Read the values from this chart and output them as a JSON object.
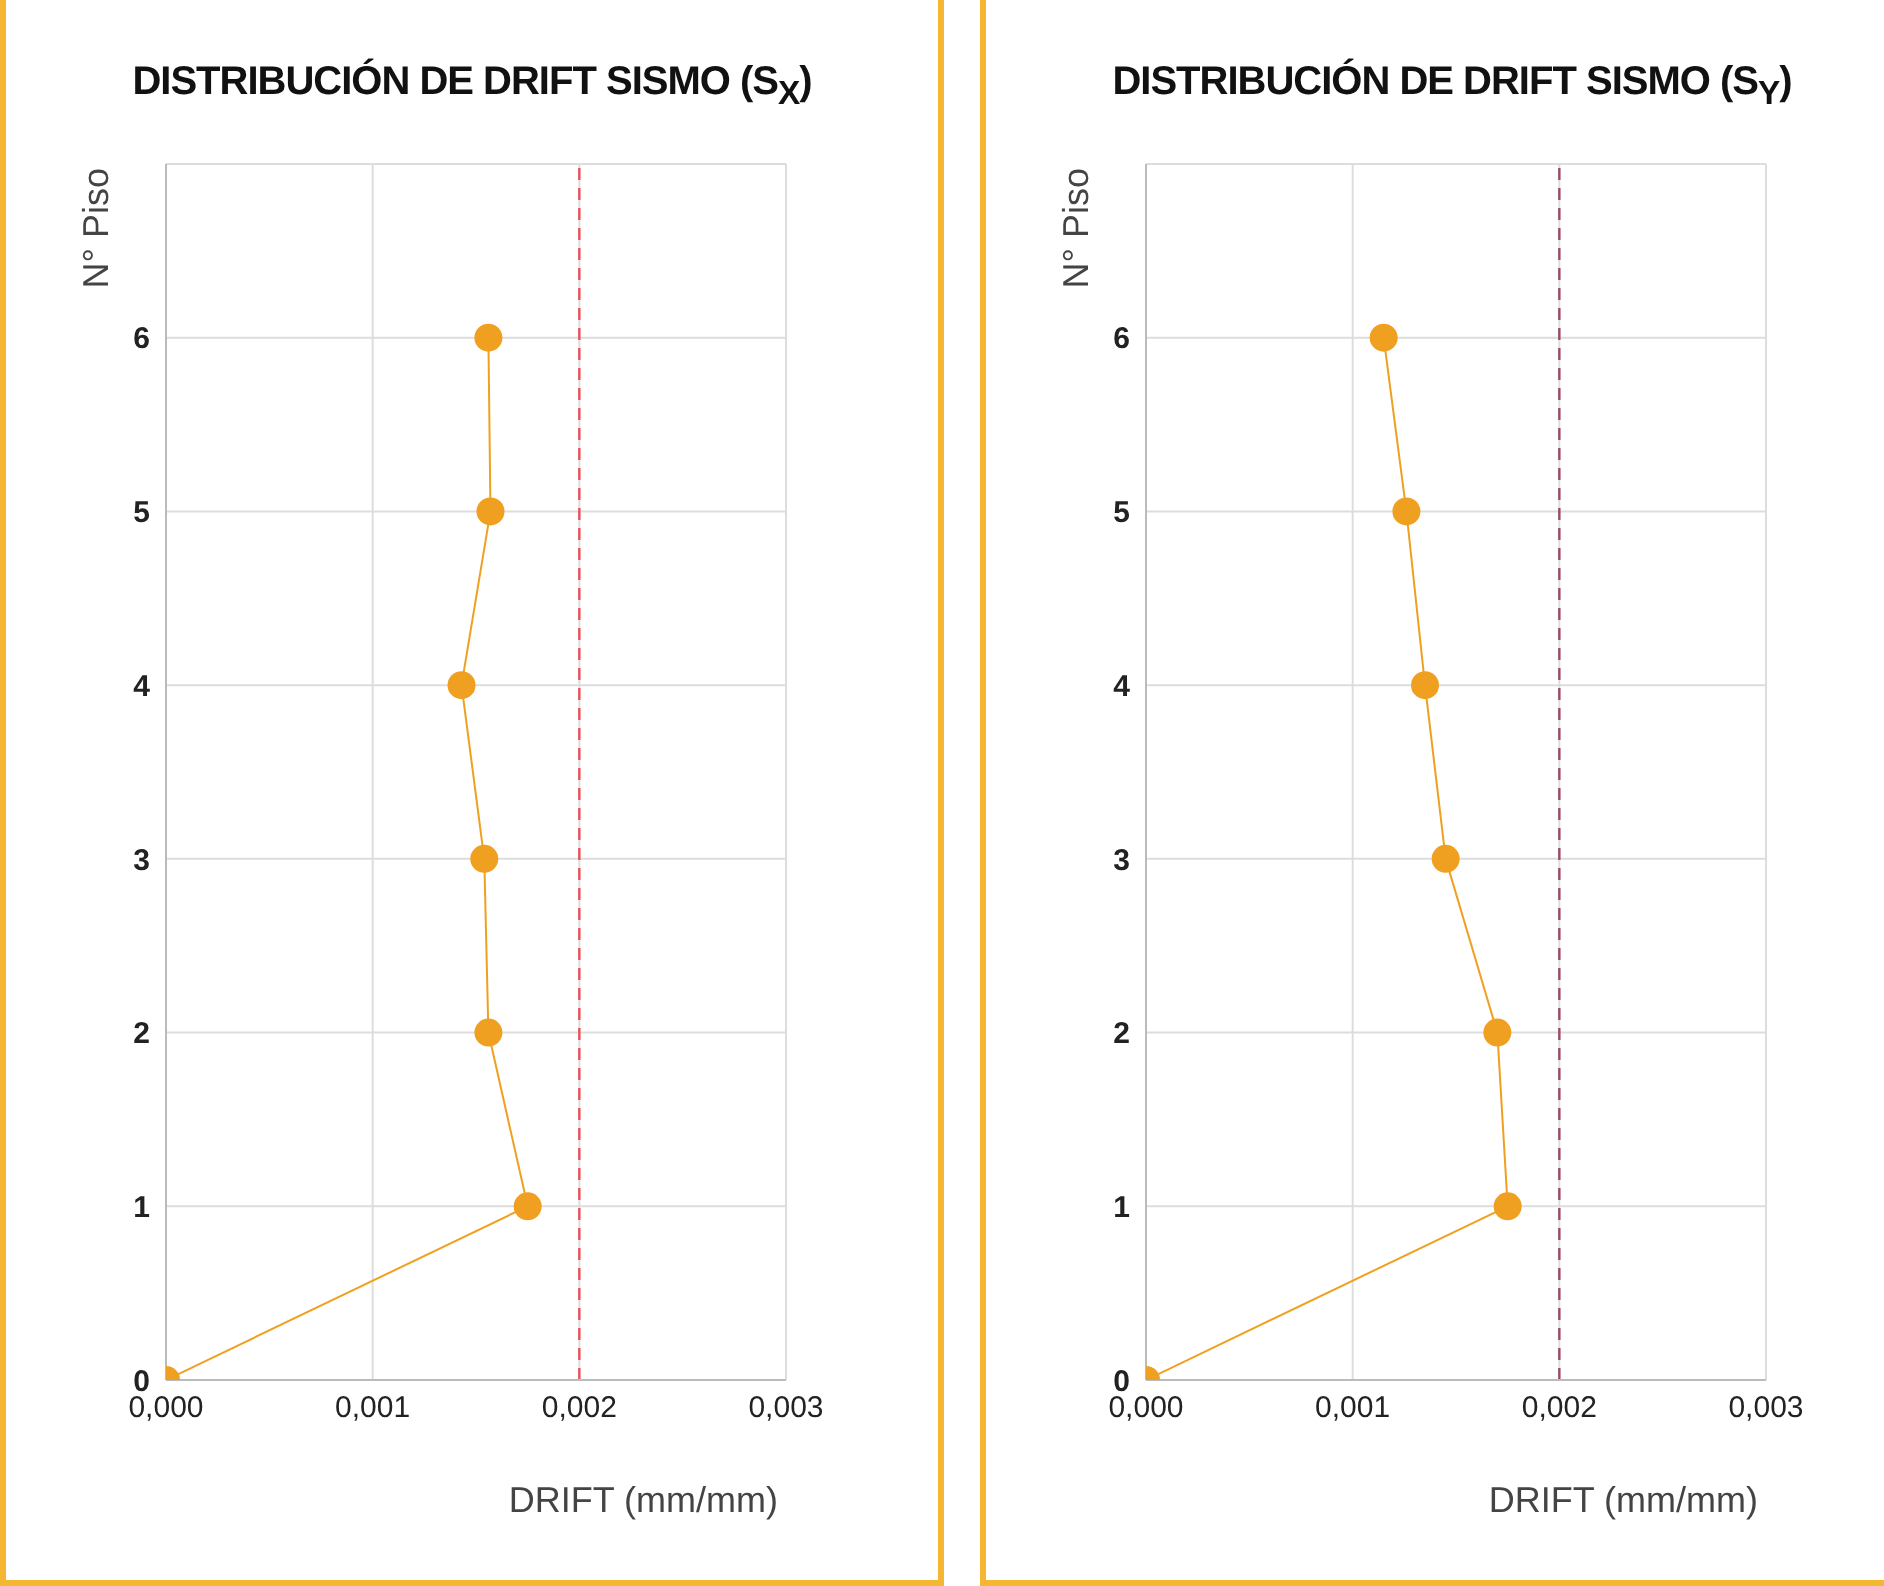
{
  "chart_data": [
    {
      "type": "line",
      "title": "DISTRIBUCIÓN DE DRIFT SISMO (S$_{X}$)",
      "xlabel": "DRIFT (mm/mm)",
      "ylabel": "N° Piso",
      "series": [
        {
          "color": "#f0a020",
          "x": [
            0,
            0.00175,
            0.00156,
            0.00154,
            0.00143,
            0.00157,
            0.00156
          ],
          "values": [
            0,
            1,
            2,
            3,
            4,
            5,
            6
          ]
        }
      ],
      "xlim": [
        0,
        0.003
      ],
      "xticks": [
        {
          "value": 0,
          "label": "0,000"
        },
        {
          "value": 0.001,
          "label": "0,001"
        },
        {
          "value": 0.002,
          "label": "0,002"
        },
        {
          "value": 0.003,
          "label": "0,003"
        }
      ],
      "ylim": [
        0,
        7
      ],
      "yticks": [
        0,
        1,
        2,
        3,
        4,
        5,
        6
      ],
      "ref_lines": [
        {
          "axis": "x",
          "value": 0.002,
          "color": "#e8505a",
          "line_style": "dashed"
        }
      ],
      "grid": true,
      "marker": "circle",
      "legend": false
    },
    {
      "type": "line",
      "title": "DISTRIBUCIÓN DE DRIFT SISMO (S$_{Y}$)",
      "xlabel": "DRIFT (mm/mm)",
      "ylabel": "N° Piso",
      "series": [
        {
          "color": "#f0a020",
          "x": [
            0,
            0.00175,
            0.0017,
            0.00145,
            0.00135,
            0.00126,
            0.00115
          ],
          "values": [
            0,
            1,
            2,
            3,
            4,
            5,
            6
          ]
        }
      ],
      "xlim": [
        0,
        0.003
      ],
      "xticks": [
        {
          "value": 0,
          "label": "0,000"
        },
        {
          "value": 0.001,
          "label": "0,001"
        },
        {
          "value": 0.002,
          "label": "0,002"
        },
        {
          "value": 0.003,
          "label": "0,003"
        }
      ],
      "ylim": [
        0,
        7
      ],
      "yticks": [
        0,
        1,
        2,
        3,
        4,
        5,
        6
      ],
      "ref_lines": [
        {
          "axis": "x",
          "value": 0.002,
          "color": "#9a4a6a",
          "line_style": "dashed"
        }
      ],
      "grid": true,
      "marker": "circle",
      "legend": false
    }
  ]
}
